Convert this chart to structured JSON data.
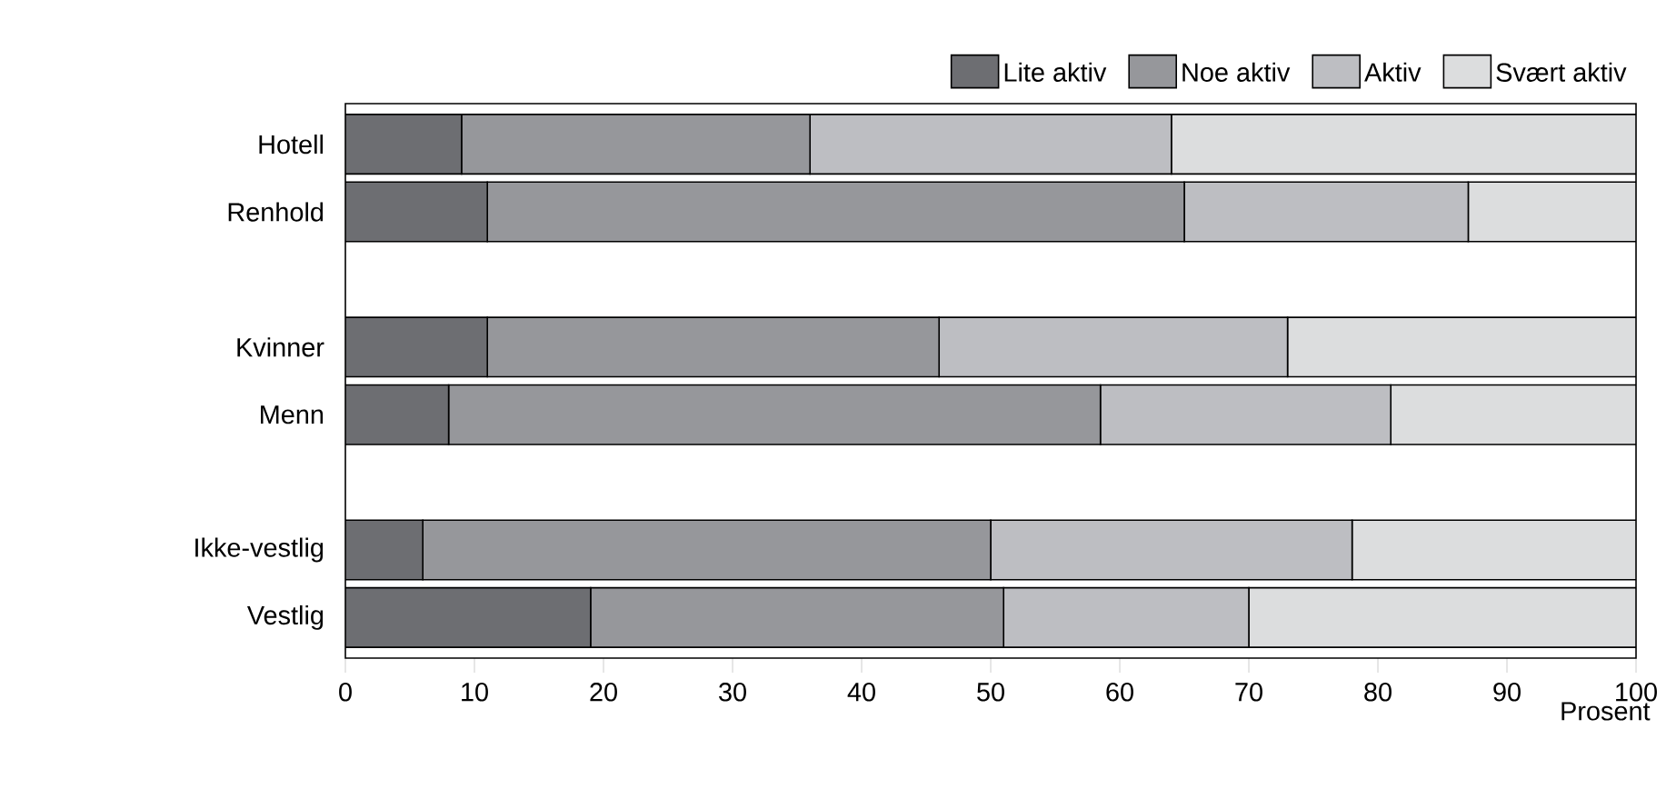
{
  "chart_data": {
    "type": "bar",
    "orientation": "horizontal",
    "stacked": true,
    "categories": [
      "Hotell",
      "Renhold",
      null,
      "Kvinner",
      "Menn",
      null,
      "Ikke-vestlig",
      "Vestlig"
    ],
    "series": [
      {
        "name": "Lite aktiv",
        "color": "#6d6e72",
        "values": [
          9,
          11,
          null,
          11,
          8,
          null,
          6,
          19
        ]
      },
      {
        "name": "Noe aktiv",
        "color": "#96979b",
        "values": [
          27,
          54,
          null,
          35,
          50.5,
          null,
          44,
          32
        ]
      },
      {
        "name": "Aktiv",
        "color": "#bdbec2",
        "values": [
          28,
          22,
          null,
          27,
          22.5,
          null,
          28,
          19
        ]
      },
      {
        "name": "Svært aktiv",
        "color": "#dcddde",
        "values": [
          36,
          13,
          null,
          27,
          19,
          null,
          22,
          30
        ]
      }
    ],
    "xlabel": "Prosent",
    "xlim": [
      0,
      100
    ],
    "xticks": [
      0,
      10,
      20,
      30,
      40,
      50,
      60,
      70,
      80,
      90,
      100
    ],
    "grid": false,
    "legend": "top right"
  }
}
